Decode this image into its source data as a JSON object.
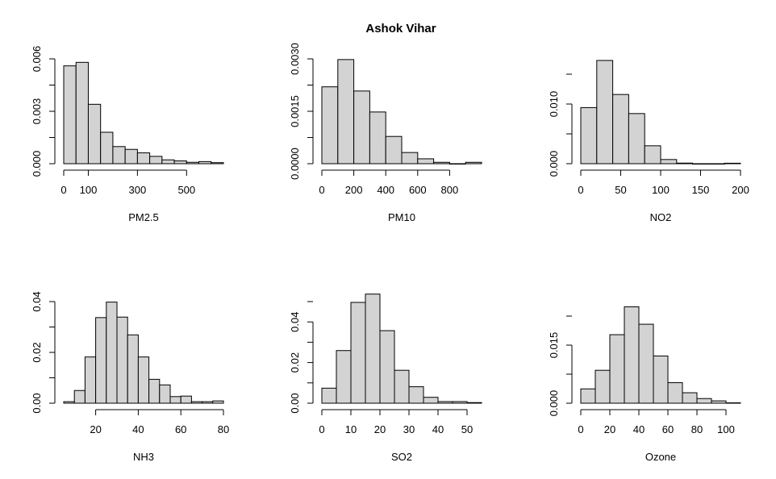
{
  "title": "Ashok Vihar",
  "chart_data": [
    {
      "type": "bar",
      "xlabel": "PM2.5",
      "breaks": [
        0,
        50,
        100,
        150,
        200,
        250,
        300,
        350,
        400,
        450,
        500,
        550,
        600,
        650
      ],
      "values": [
        0.0056,
        0.0058,
        0.0034,
        0.0018,
        0.00098,
        0.00082,
        0.00062,
        0.00042,
        0.00022,
        0.00016,
        8e-05,
        0.00012,
        6e-05
      ],
      "xticks": [
        0,
        100,
        300,
        500
      ],
      "yticks": [
        0.0,
        0.003,
        0.006
      ],
      "ytick_labels": [
        "0.000",
        "0.003",
        "0.006"
      ]
    },
    {
      "type": "bar",
      "xlabel": "PM10",
      "breaks": [
        0,
        100,
        200,
        300,
        400,
        500,
        600,
        700,
        800,
        900,
        1000
      ],
      "values": [
        0.0022,
        0.00298,
        0.00208,
        0.00148,
        0.00078,
        0.00032,
        0.00014,
        4e-05,
        0.0,
        4e-05
      ],
      "xticks": [
        0,
        200,
        400,
        600,
        800
      ],
      "yticks": [
        0.0,
        0.0015,
        0.003
      ],
      "ytick_labels": [
        "0.0000",
        "0.0015",
        "0.0030"
      ]
    },
    {
      "type": "bar",
      "xlabel": "NO2",
      "breaks": [
        0,
        20,
        40,
        60,
        80,
        100,
        120,
        140,
        160,
        180,
        200
      ],
      "values": [
        0.0094,
        0.0173,
        0.0116,
        0.0084,
        0.003,
        0.0007,
        0.0001,
        0.0,
        0.0,
        8e-05
      ],
      "xticks": [
        0,
        50,
        100,
        150,
        200
      ],
      "yticks": [
        0.0,
        0.01
      ],
      "ytick_labels": [
        "0.000",
        "0.010"
      ]
    },
    {
      "type": "bar",
      "xlabel": "NH3",
      "breaks": [
        5,
        10,
        15,
        20,
        25,
        30,
        35,
        40,
        45,
        50,
        55,
        60,
        65,
        70,
        75,
        80
      ],
      "values": [
        0.0006,
        0.005,
        0.0182,
        0.0337,
        0.0398,
        0.0339,
        0.0269,
        0.0182,
        0.0094,
        0.0072,
        0.0026,
        0.0028,
        0.0006,
        0.0006,
        0.0009
      ],
      "xticks": [
        20,
        40,
        60,
        80
      ],
      "yticks": [
        0.0,
        0.02,
        0.04
      ],
      "ytick_labels": [
        "0.00",
        "0.02",
        "0.04"
      ]
    },
    {
      "type": "bar",
      "xlabel": "SO2",
      "breaks": [
        0,
        5,
        10,
        15,
        20,
        25,
        30,
        35,
        40,
        45,
        50,
        55
      ],
      "values": [
        0.0074,
        0.0259,
        0.0496,
        0.0537,
        0.0357,
        0.0162,
        0.0081,
        0.0029,
        0.0008,
        0.0008,
        0.0003
      ],
      "xticks": [
        0,
        10,
        20,
        30,
        40,
        50
      ],
      "yticks": [
        0.0,
        0.02,
        0.04
      ],
      "ytick_labels": [
        "0.00",
        "0.02",
        "0.04"
      ]
    },
    {
      "type": "bar",
      "xlabel": "Ozone",
      "breaks": [
        0,
        10,
        20,
        30,
        40,
        50,
        60,
        70,
        80,
        90,
        100,
        110
      ],
      "values": [
        0.0037,
        0.0085,
        0.0177,
        0.0249,
        0.0204,
        0.0122,
        0.0053,
        0.0027,
        0.0012,
        0.0006,
        0.0001
      ],
      "xticks": [
        0,
        20,
        40,
        60,
        80,
        100
      ],
      "yticks": [
        0.0,
        0.015
      ],
      "ytick_labels": [
        "0.000",
        "0.015"
      ]
    }
  ]
}
